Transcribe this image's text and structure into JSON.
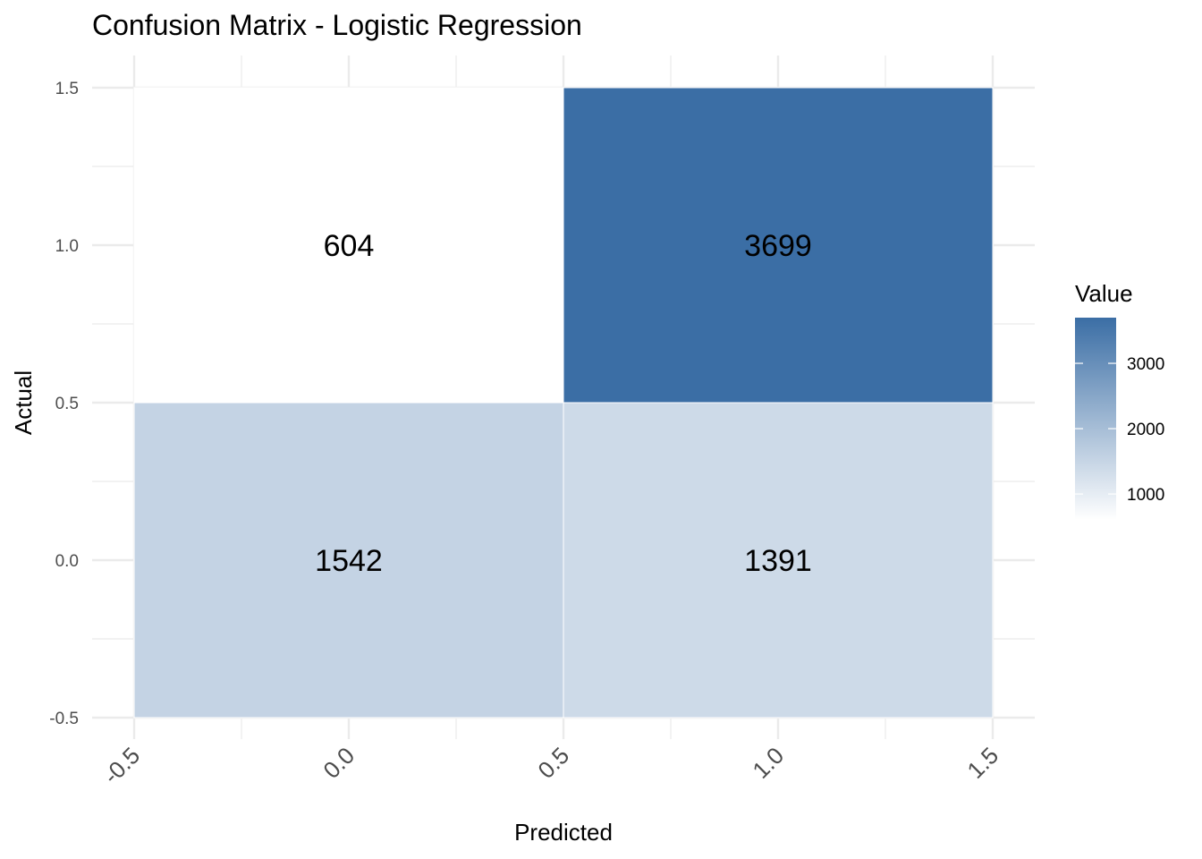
{
  "chart_data": {
    "type": "heatmap",
    "title": "Confusion Matrix - Logistic Regression",
    "xlabel": "Predicted",
    "ylabel": "Actual",
    "xlim": [
      -0.5,
      1.5
    ],
    "ylim": [
      -0.5,
      1.5
    ],
    "x_ticks": [
      "-0.5",
      "0.0",
      "0.5",
      "1.0",
      "1.5"
    ],
    "y_ticks": [
      "-0.5",
      "0.0",
      "0.5",
      "1.0",
      "1.5"
    ],
    "cells": [
      {
        "predicted": 0,
        "actual": 0,
        "value": 1542
      },
      {
        "predicted": 1,
        "actual": 0,
        "value": 1391
      },
      {
        "predicted": 0,
        "actual": 1,
        "value": 604
      },
      {
        "predicted": 1,
        "actual": 1,
        "value": 3699
      }
    ],
    "legend": {
      "title": "Value",
      "ticks": [
        "1000",
        "2000",
        "3000"
      ],
      "position": "right",
      "color_low": "#ffffff",
      "color_high": "#3b6ea5"
    },
    "grid": true
  }
}
